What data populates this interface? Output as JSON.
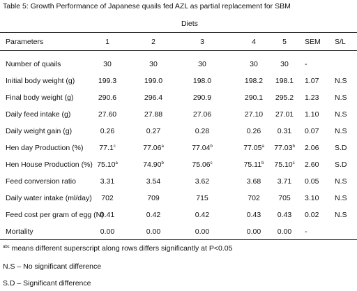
{
  "title": "Table 5: Growth Performance of Japanese quails fed AZL as partial replacement for SBM",
  "diets_label": "Diets",
  "headers": {
    "parameters": "Parameters",
    "d1": "1",
    "d2": "2",
    "d3": "3",
    "d4": "4",
    "d5": "5",
    "sem": "SEM",
    "sl": "S/L"
  },
  "rows": [
    {
      "label": "Number of quails",
      "d1": "30",
      "d2": "30",
      "d3": "30",
      "d4": "30",
      "d5": "30",
      "sem": "-",
      "sl": ""
    },
    {
      "label": "Initial body weight (g)",
      "d1": "199.3",
      "d2": "199.0",
      "d3": "198.0",
      "d4": "198.2",
      "d5": "198.1",
      "sem": "1.07",
      "sl": "N.S"
    },
    {
      "label": "Final body weight (g)",
      "d1": "290.6",
      "d2": "296.4",
      "d3": "290.9",
      "d4": "290.1",
      "d5": "295.2",
      "sem": "1.23",
      "sl": "N.S"
    },
    {
      "label": "Daily feed intake (g)",
      "d1": "27.60",
      "d2": "27.88",
      "d3": "27.06",
      "d4": "27.10",
      "d5": "27.01",
      "sem": "1.10",
      "sl": "N.S"
    },
    {
      "label": "Daily weight gain (g)",
      "d1": "0.26",
      "d2": "0.27",
      "d3": "0.28",
      "d4": "0.26",
      "d5": "0.31",
      "sem": "0.07",
      "sl": "N.S"
    },
    {
      "label": "Hen day Production (%)",
      "d1": "77.1",
      "d1_sup": "c",
      "d2": "77.06",
      "d2_sup": "a",
      "d3": "77.04",
      "d3_sup": "b",
      "d4": "77.05",
      "d4_sup": "a",
      "d5": "77.03",
      "d5_sup": "b",
      "sem": "2.06",
      "sl": "S.D"
    },
    {
      "label": "Hen House Production (%)",
      "d1": "75.10",
      "d1_sup": "a",
      "d2": "74.90",
      "d2_sup": "b",
      "d3": "75.06",
      "d3_sup": "c",
      "d4": "75.11",
      "d4_sup": "b",
      "d5": "75.10",
      "d5_sup": "c",
      "sem": "2.60",
      "sl": "S.D"
    },
    {
      "label": "Feed conversion ratio",
      "d1": "3.31",
      "d2": "3.54",
      "d3": "3.62",
      "d4": "3.68",
      "d5": "3.71",
      "sem": "0.05",
      "sl": "N.S"
    },
    {
      "label": "Daily water intake (ml/day)",
      "d1": "702",
      "d2": "709",
      "d3": "715",
      "d4": "702",
      "d5": "705",
      "sem": "3.10",
      "sl": "N.S"
    },
    {
      "label": "Feed cost per gram of egg (N)",
      "d1": "0.41",
      "d2": "0.42",
      "d3": "0.42",
      "d4": "0.43",
      "d5": "0.43",
      "sem": "0.02",
      "sl": "N.S"
    },
    {
      "label": "Mortality",
      "d1": "0.00",
      "d2": "0.00",
      "d3": "0.00",
      "d4": "0.00",
      "d5": "0.00",
      "sem": "-",
      "sl": ""
    }
  ],
  "footnotes": {
    "sup_marker": "abc",
    "sig_note": "means different superscript along rows differs significantly at P<0.05",
    "ns_note": "N.S – No significant difference",
    "sd_note": "S.D – Significant difference"
  }
}
